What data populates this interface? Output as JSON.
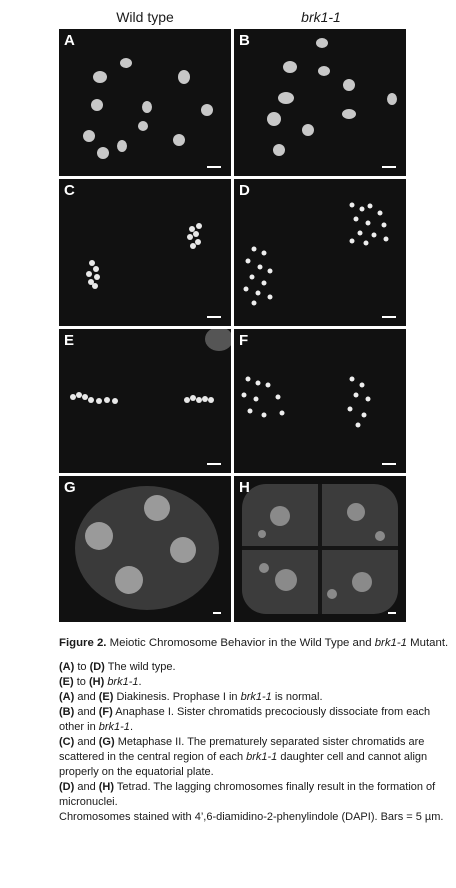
{
  "headers": {
    "left": "Wild type",
    "right": "brk1-1"
  },
  "panels": [
    {
      "label": "A"
    },
    {
      "label": "B"
    },
    {
      "label": "C"
    },
    {
      "label": "D"
    },
    {
      "label": "E"
    },
    {
      "label": "F"
    },
    {
      "label": "G"
    },
    {
      "label": "H"
    }
  ],
  "caption": {
    "fig_label": "Figure 2.",
    "title_pre": " Meiotic Chromosome Behavior in the Wild Type and ",
    "title_italic": "brk1-1",
    "title_post": " Mutant.",
    "l1_a": "(A)",
    "l1_b": " to ",
    "l1_c": "(D)",
    "l1_d": " The wild type.",
    "l2_a": "(E)",
    "l2_b": " to ",
    "l2_c": "(H)",
    "l2_d": " ",
    "l2_e": "brk1-1",
    "l2_f": ".",
    "l3_a": "(A)",
    "l3_b": " and ",
    "l3_c": "(E)",
    "l3_d": " Diakinesis. Prophase I in ",
    "l3_e": "brk1-1",
    "l3_f": " is normal.",
    "l4_a": "(B)",
    "l4_b": " and ",
    "l4_c": "(F)",
    "l4_d": " Anaphase I. Sister chromatids precociously dissociate from each other in ",
    "l4_e": "brk1-1",
    "l4_f": ".",
    "l5_a": "(C)",
    "l5_b": " and ",
    "l5_c": "(G)",
    "l5_d": " Metaphase II. The prematurely separated sister chromatids are scattered in the central region of each ",
    "l5_e": "brk1-1",
    "l5_f": " daughter cell and cannot align properly on the equatorial plate.",
    "l6_a": "(D)",
    "l6_b": " and ",
    "l6_c": "(H)",
    "l6_d": " Tetrad. The lagging chromosomes finally result in the formation of micronuclei.",
    "l7": "Chromosomes stained with 4’,6-diamidino-2-phenylindole (DAPI). Bars = 5 µm."
  },
  "colors": {
    "panel_bg": "#111111",
    "signal": "#e8e8e8"
  }
}
